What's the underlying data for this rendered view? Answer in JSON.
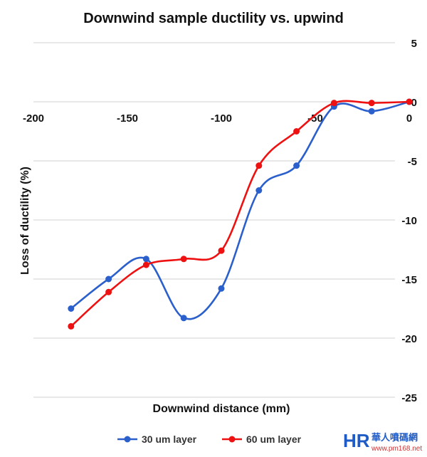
{
  "chart_data": {
    "type": "line",
    "title": "Downwind sample ductility vs. upwind",
    "xlabel": "Downwind distance (mm)",
    "ylabel": "Loss of ductility (%)",
    "xlim": [
      -200,
      0
    ],
    "ylim": [
      -25,
      5
    ],
    "x_ticks": [
      "-200",
      "-150",
      "-100",
      "-50",
      "0"
    ],
    "y_ticks": [
      "5",
      "0",
      "-5",
      "-10",
      "-15",
      "-20",
      "-25"
    ],
    "grid": true,
    "legend_position": "bottom",
    "x": [
      -180,
      -160,
      -140,
      -120,
      -100,
      -80,
      -60,
      -40,
      -20,
      0
    ],
    "series": [
      {
        "name": "30 um layer",
        "color": "#2a5fcc",
        "values": [
          -17.5,
          -15.0,
          -13.3,
          -18.3,
          -15.8,
          -7.5,
          -5.4,
          -0.4,
          -0.8,
          0
        ]
      },
      {
        "name": "60 um layer",
        "color": "#ee1111",
        "values": [
          -19.0,
          -16.1,
          -13.8,
          -13.3,
          -12.6,
          -5.4,
          -2.5,
          -0.1,
          -0.1,
          0
        ]
      }
    ]
  },
  "watermark": {
    "brand": "HR",
    "text": "華人噴碼網",
    "url": "www.pm168.net"
  }
}
